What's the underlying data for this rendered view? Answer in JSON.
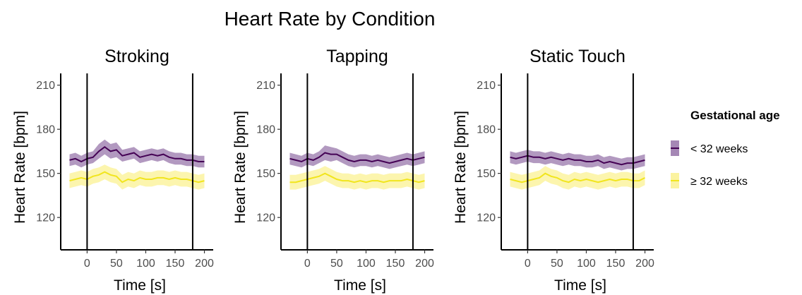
{
  "figure": {
    "title": "Heart Rate by Condition",
    "legend": {
      "title": "Gestational age",
      "placement": "right",
      "entries": [
        {
          "label": "< 32 weeks",
          "line_color": "#440154",
          "ribbon_color": "#A587B5"
        },
        {
          "label": "≥ 32 weeks",
          "line_color": "#F1E51D",
          "ribbon_color": "#FBF3A0"
        }
      ]
    }
  },
  "chart_data": [
    {
      "type": "line",
      "title": "Stroking",
      "xlabel": "Time [s]",
      "ylabel": "Heart Rate [bpm]",
      "xlim": [
        -45,
        215
      ],
      "ylim": [
        98,
        218
      ],
      "xticks": [
        0,
        50,
        100,
        150,
        200
      ],
      "yticks": [
        120,
        150,
        180,
        210
      ],
      "vlines": [
        0,
        180
      ],
      "grid": false,
      "x": [
        -30,
        -20,
        -10,
        0,
        10,
        20,
        30,
        40,
        50,
        60,
        70,
        80,
        90,
        100,
        110,
        120,
        130,
        140,
        150,
        160,
        170,
        180,
        190,
        200
      ],
      "series": [
        {
          "name": "< 32 weeks",
          "color": "#440154",
          "ribbon": "#A587B5",
          "values": [
            159,
            160,
            158,
            160,
            161,
            165,
            168,
            165,
            166,
            162,
            163,
            164,
            161,
            162,
            163,
            162,
            163,
            161,
            160,
            160,
            159,
            159,
            158,
            158
          ],
          "ci_halfwidth": [
            4,
            4,
            4,
            4,
            4,
            5,
            5,
            5,
            5,
            4,
            4,
            4,
            4,
            4,
            4,
            4,
            4,
            4,
            4,
            4,
            4,
            4,
            4,
            4
          ]
        },
        {
          "name": "≥ 32 weeks",
          "color": "#F1E51D",
          "ribbon": "#FBF3A0",
          "values": [
            145,
            146,
            147,
            146,
            148,
            149,
            151,
            149,
            148,
            144,
            146,
            145,
            147,
            146,
            146,
            147,
            147,
            146,
            147,
            146,
            146,
            145,
            144,
            145
          ],
          "ci_halfwidth": [
            5,
            5,
            5,
            5,
            5,
            5,
            5,
            5,
            5,
            5,
            5,
            5,
            5,
            5,
            5,
            5,
            5,
            5,
            5,
            5,
            5,
            5,
            5,
            5
          ]
        }
      ]
    },
    {
      "type": "line",
      "title": "Tapping",
      "xlabel": "Time [s]",
      "ylabel": "Heart Rate [bpm]",
      "xlim": [
        -45,
        215
      ],
      "ylim": [
        98,
        218
      ],
      "xticks": [
        0,
        50,
        100,
        150,
        200
      ],
      "yticks": [
        120,
        150,
        180,
        210
      ],
      "vlines": [
        0,
        180
      ],
      "grid": false,
      "x": [
        -30,
        -20,
        -10,
        0,
        10,
        20,
        30,
        40,
        50,
        60,
        70,
        80,
        90,
        100,
        110,
        120,
        130,
        140,
        150,
        160,
        170,
        180,
        190,
        200
      ],
      "series": [
        {
          "name": "< 32 weeks",
          "color": "#440154",
          "ribbon": "#A587B5",
          "values": [
            160,
            159,
            158,
            160,
            159,
            161,
            164,
            163,
            163,
            161,
            159,
            158,
            159,
            159,
            158,
            159,
            158,
            157,
            158,
            159,
            160,
            159,
            160,
            161
          ],
          "ci_halfwidth": [
            4,
            4,
            4,
            4,
            4,
            4,
            5,
            5,
            4,
            4,
            4,
            4,
            4,
            4,
            4,
            4,
            4,
            4,
            4,
            4,
            4,
            4,
            4,
            4
          ]
        },
        {
          "name": "≥ 32 weeks",
          "color": "#F1E51D",
          "ribbon": "#FBF3A0",
          "values": [
            144,
            144,
            145,
            146,
            147,
            148,
            150,
            148,
            146,
            145,
            145,
            144,
            145,
            144,
            145,
            145,
            144,
            145,
            145,
            145,
            146,
            145,
            144,
            145
          ],
          "ci_halfwidth": [
            5,
            5,
            5,
            5,
            5,
            5,
            5,
            5,
            5,
            5,
            5,
            5,
            5,
            5,
            5,
            5,
            5,
            5,
            5,
            5,
            5,
            5,
            5,
            5
          ]
        }
      ]
    },
    {
      "type": "line",
      "title": "Static Touch",
      "xlabel": "Time [s]",
      "ylabel": "Heart Rate [bpm]",
      "xlim": [
        -45,
        215
      ],
      "ylim": [
        98,
        218
      ],
      "xticks": [
        0,
        50,
        100,
        150,
        200
      ],
      "yticks": [
        120,
        150,
        180,
        210
      ],
      "vlines": [
        0,
        180
      ],
      "grid": false,
      "x": [
        -30,
        -20,
        -10,
        0,
        10,
        20,
        30,
        40,
        50,
        60,
        70,
        80,
        90,
        100,
        110,
        120,
        130,
        140,
        150,
        160,
        170,
        180,
        190,
        200
      ],
      "series": [
        {
          "name": "< 32 weeks",
          "color": "#440154",
          "ribbon": "#A587B5",
          "values": [
            161,
            160,
            161,
            162,
            161,
            161,
            160,
            161,
            160,
            159,
            160,
            159,
            159,
            158,
            158,
            159,
            157,
            158,
            157,
            156,
            157,
            157,
            158,
            159
          ],
          "ci_halfwidth": [
            4,
            4,
            4,
            4,
            4,
            4,
            4,
            4,
            4,
            4,
            4,
            4,
            4,
            4,
            4,
            4,
            4,
            4,
            4,
            4,
            4,
            4,
            4,
            4
          ]
        },
        {
          "name": "≥ 32 weeks",
          "color": "#F1E51D",
          "ribbon": "#FBF3A0",
          "values": [
            146,
            145,
            144,
            145,
            146,
            147,
            150,
            148,
            147,
            145,
            144,
            146,
            145,
            146,
            145,
            144,
            145,
            146,
            145,
            146,
            146,
            145,
            145,
            147
          ],
          "ci_halfwidth": [
            5,
            5,
            5,
            5,
            5,
            5,
            5,
            5,
            5,
            5,
            5,
            5,
            5,
            5,
            5,
            5,
            5,
            5,
            5,
            5,
            5,
            5,
            5,
            5
          ]
        }
      ]
    }
  ]
}
